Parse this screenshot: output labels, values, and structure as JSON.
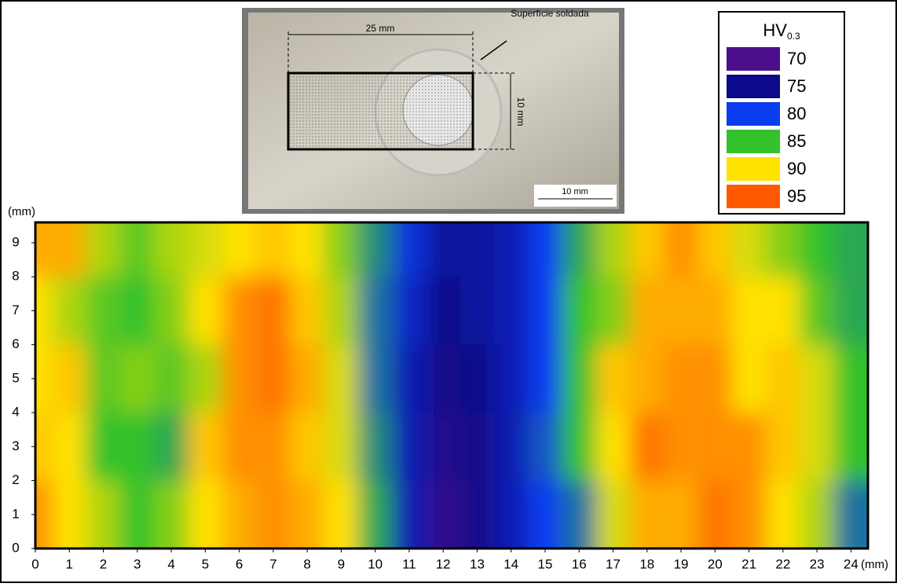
{
  "photo": {
    "dimension_long": "25 mm",
    "label": "Superfície soldada",
    "dimension_short": "10 mm",
    "scale_bar": "10 mm"
  },
  "chart_data": {
    "type": "heatmap",
    "x": [
      0,
      1,
      2,
      3,
      4,
      5,
      6,
      7,
      8,
      9,
      10,
      11,
      12,
      13,
      14,
      15,
      16,
      17,
      18,
      19,
      20,
      21,
      22,
      23,
      24
    ],
    "y": [
      1,
      3,
      5,
      7,
      9
    ],
    "z": [
      [
        93,
        90,
        88,
        85,
        87,
        90,
        92,
        93,
        92,
        90,
        84,
        77,
        72,
        74,
        77,
        80,
        82,
        89,
        92,
        92,
        94,
        93,
        90,
        88,
        82
      ],
      [
        91,
        90,
        85,
        85,
        84,
        91,
        93,
        93,
        91,
        89,
        83,
        77,
        73,
        74,
        77,
        81,
        85,
        90,
        94,
        93,
        93,
        93,
        91,
        89,
        85
      ],
      [
        90,
        91,
        86,
        87,
        86,
        88,
        93,
        94,
        92,
        89,
        82,
        77,
        74,
        75,
        77,
        80,
        85,
        91,
        92,
        93,
        93,
        90,
        91,
        89,
        85
      ],
      [
        90,
        88,
        86,
        85,
        87,
        90,
        93,
        94,
        91,
        88,
        82,
        78,
        75,
        76,
        77,
        80,
        85,
        87,
        92,
        92,
        92,
        90,
        90,
        86,
        84
      ],
      [
        92,
        92,
        88,
        86,
        88,
        89,
        90,
        91,
        90,
        87,
        83,
        79,
        76,
        76,
        77,
        80,
        84,
        88,
        91,
        93,
        91,
        89,
        87,
        85,
        84
      ]
    ],
    "xlim": [
      0,
      24.5
    ],
    "ylim": [
      0,
      9.6
    ],
    "xticks": [
      0,
      1,
      2,
      3,
      4,
      5,
      6,
      7,
      8,
      9,
      10,
      11,
      12,
      13,
      14,
      15,
      16,
      17,
      18,
      19,
      20,
      21,
      22,
      23,
      24
    ],
    "yticks": [
      0,
      1,
      2,
      3,
      4,
      5,
      6,
      7,
      8,
      9
    ],
    "x_unit": "(mm)",
    "y_unit": "(mm)",
    "colorbar": {
      "title": "HV",
      "title_sub": "0.3",
      "levels": [
        70,
        75,
        80,
        85,
        90,
        95
      ],
      "colors": [
        "#4b0f8c",
        "#0a0a8a",
        "#0a3cf0",
        "#33c22a",
        "#ffe200",
        "#ff5a00"
      ]
    }
  }
}
